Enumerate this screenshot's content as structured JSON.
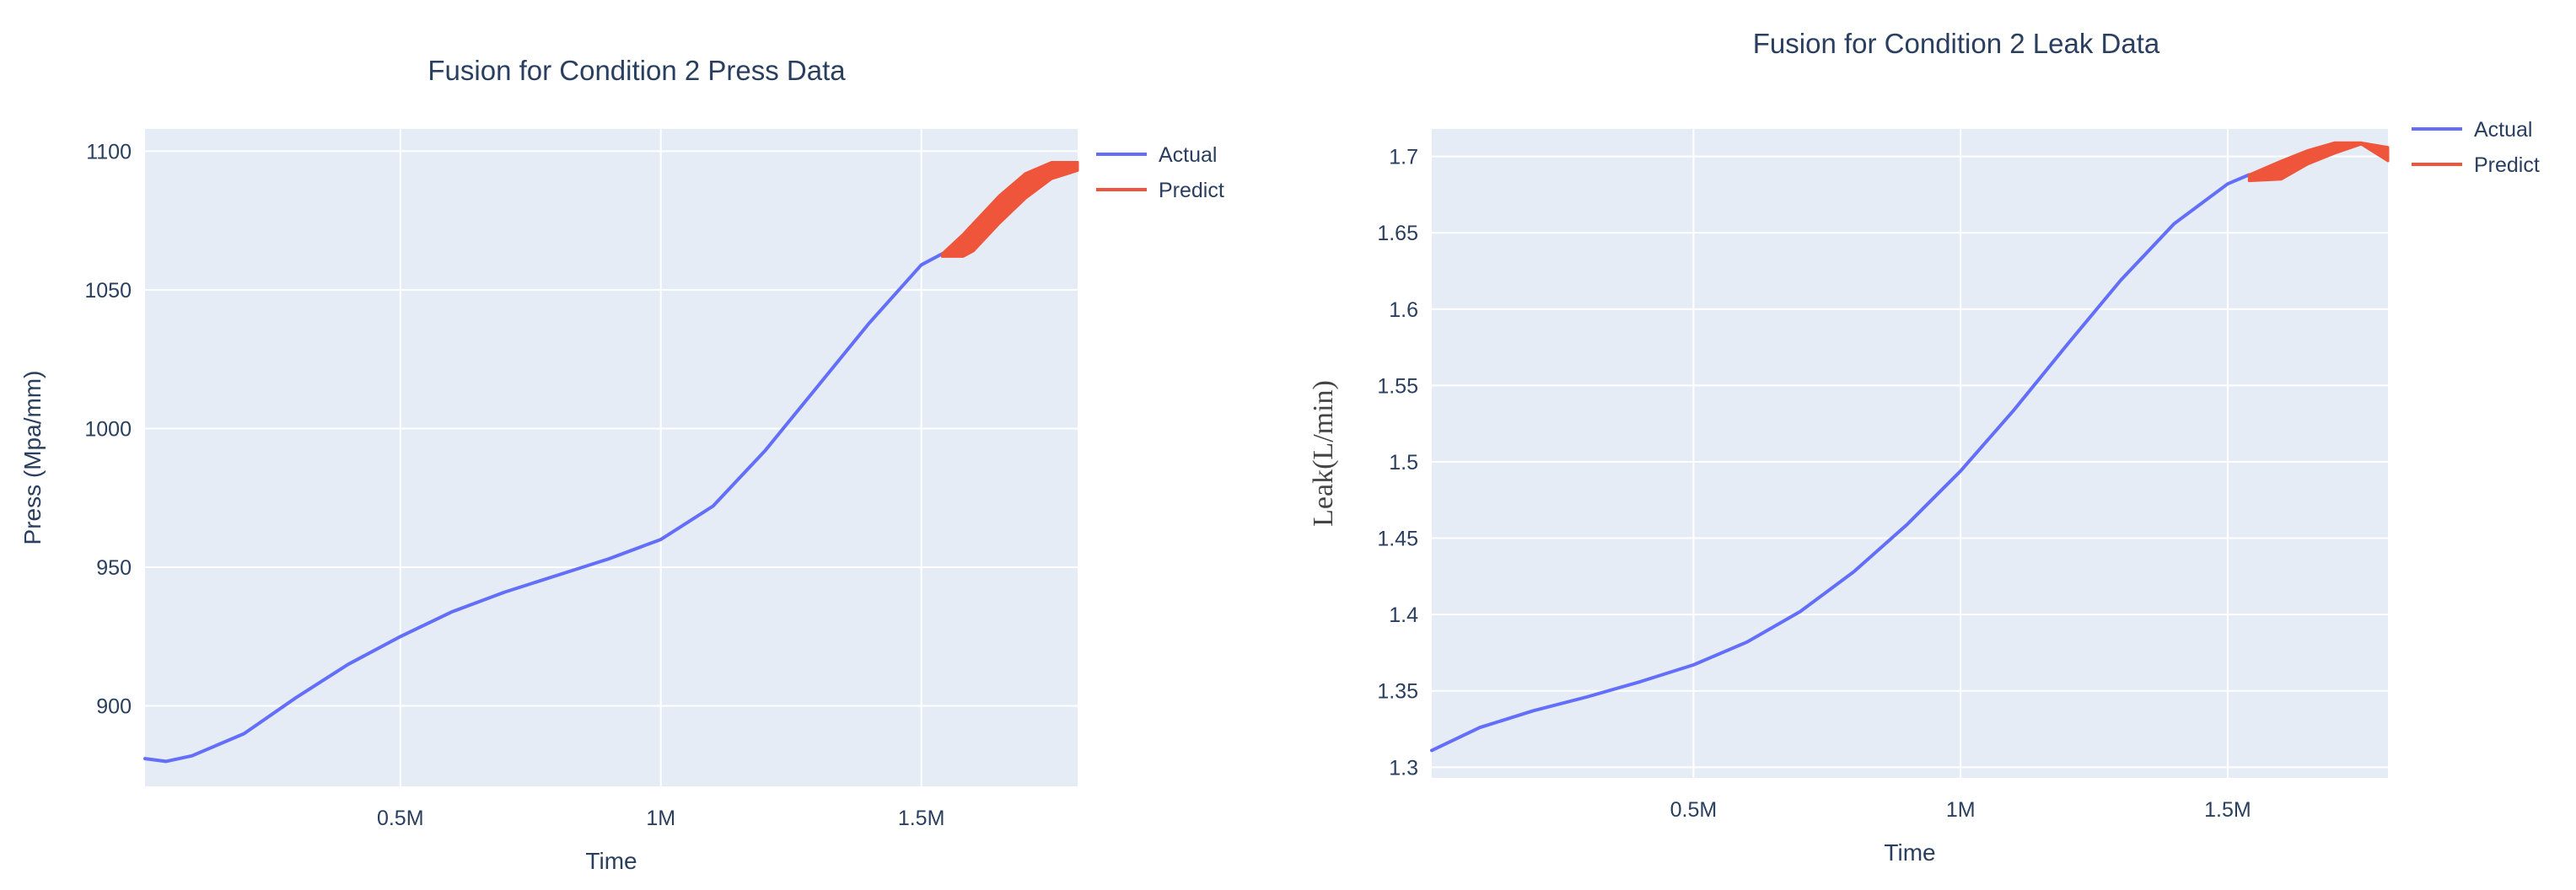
{
  "chart_data": [
    {
      "type": "line",
      "title": "Fusion for Condition 2 Press Data",
      "xlabel": "Time",
      "ylabel": "Press (Mpa/mm)",
      "xlim": [
        10000,
        1800000
      ],
      "ylim": [
        871,
        1108
      ],
      "x_ticks": [
        500000,
        1000000,
        1500000
      ],
      "x_tick_labels": [
        "0.5M",
        "1M",
        "1.5M"
      ],
      "y_ticks": [
        900,
        950,
        1000,
        1050,
        1100
      ],
      "y_tick_labels": [
        "900",
        "950",
        "1000",
        "1050",
        "1100"
      ],
      "grid": true,
      "legend_position": "top-right",
      "series": [
        {
          "name": "Actual",
          "color": "#636efa",
          "x": [
            10000,
            50000,
            100000,
            200000,
            300000,
            400000,
            500000,
            600000,
            700000,
            800000,
            900000,
            1000000,
            1100000,
            1200000,
            1300000,
            1400000,
            1500000,
            1540000
          ],
          "y": [
            881,
            880,
            882,
            890,
            903,
            915,
            925,
            934,
            941,
            947,
            953,
            960,
            972,
            992,
            1015,
            1038,
            1059,
            1063
          ]
        },
        {
          "name": "Predict",
          "color": "#ef553b",
          "band_x": [
            1540000,
            1580000,
            1600000,
            1650000,
            1700000,
            1750000,
            1800000
          ],
          "band_upper": [
            1063,
            1070,
            1074,
            1084,
            1092,
            1096,
            1096
          ],
          "band_lower": [
            1062,
            1062,
            1064,
            1074,
            1083,
            1090,
            1093
          ]
        }
      ]
    },
    {
      "type": "line",
      "title": "Fusion for Condition 2 Leak Data",
      "xlabel": "Time",
      "ylabel": "Leak(L/min)",
      "xlim": [
        10000,
        1800000
      ],
      "ylim": [
        1.293,
        1.718
      ],
      "x_ticks": [
        500000,
        1000000,
        1500000
      ],
      "x_tick_labels": [
        "0.5M",
        "1M",
        "1.5M"
      ],
      "y_ticks": [
        1.3,
        1.35,
        1.4,
        1.45,
        1.5,
        1.55,
        1.6,
        1.65,
        1.7
      ],
      "y_tick_labels": [
        "1.3",
        "1.35",
        "1.4",
        "1.45",
        "1.5",
        "1.55",
        "1.6",
        "1.65",
        "1.7"
      ],
      "grid": true,
      "legend_position": "top-right",
      "series": [
        {
          "name": "Actual",
          "color": "#636efa",
          "x": [
            10000,
            100000,
            200000,
            300000,
            400000,
            500000,
            600000,
            700000,
            800000,
            900000,
            1000000,
            1100000,
            1200000,
            1300000,
            1400000,
            1500000,
            1540000
          ],
          "y": [
            1.311,
            1.326,
            1.337,
            1.346,
            1.356,
            1.367,
            1.382,
            1.402,
            1.428,
            1.459,
            1.494,
            1.534,
            1.577,
            1.619,
            1.656,
            1.682,
            1.688
          ]
        },
        {
          "name": "Predict",
          "color": "#ef553b",
          "band_x": [
            1540000,
            1600000,
            1650000,
            1700000,
            1750000,
            1800000
          ],
          "band_upper": [
            1.688,
            1.697,
            1.704,
            1.709,
            1.709,
            1.706
          ],
          "band_lower": [
            1.684,
            1.685,
            1.695,
            1.702,
            1.708,
            1.697
          ]
        }
      ]
    }
  ]
}
